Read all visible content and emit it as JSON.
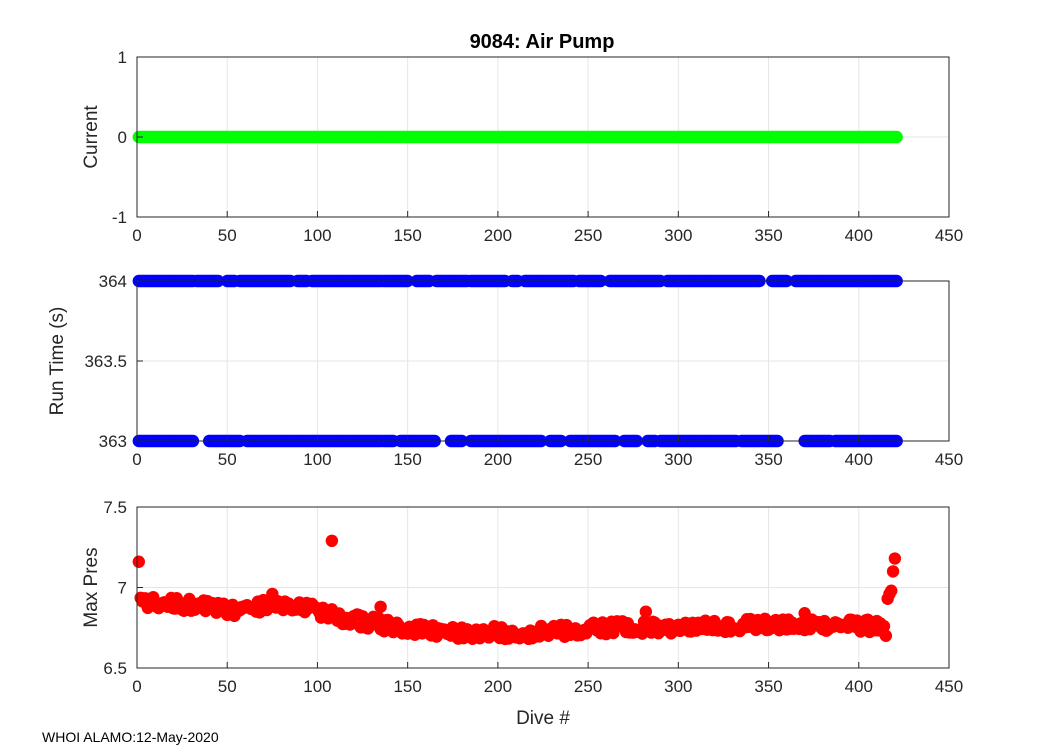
{
  "chart_data": [
    {
      "type": "scatter",
      "title": "9084: Air Pump",
      "xlabel": "",
      "ylabel": "Current",
      "xlim": [
        0,
        450
      ],
      "ylim": [
        -1,
        1
      ],
      "xticks": [
        "0",
        "50",
        "100",
        "150",
        "200",
        "250",
        "300",
        "350",
        "400",
        "450"
      ],
      "yticks": [
        "-1",
        "0",
        "1"
      ],
      "grid": true,
      "color": "#00ff00",
      "x_range": [
        1,
        421
      ],
      "y_constant": 0
    },
    {
      "type": "scatter",
      "title": "",
      "xlabel": "",
      "ylabel": "Run Time (s)",
      "xlim": [
        0,
        450
      ],
      "ylim": [
        363,
        364
      ],
      "xticks": [
        "0",
        "50",
        "100",
        "150",
        "200",
        "250",
        "300",
        "350",
        "400",
        "450"
      ],
      "yticks": [
        "363",
        "363.5",
        "364"
      ],
      "grid": true,
      "color": "#0000ff",
      "series": [
        {
          "y": 364,
          "x_segments": [
            [
              1,
              31
            ],
            [
              33,
              45
            ],
            [
              50,
              54
            ],
            [
              57,
              85
            ],
            [
              89,
              94
            ],
            [
              97,
              150
            ],
            [
              155,
              162
            ],
            [
              166,
              183
            ],
            [
              185,
              204
            ],
            [
              208,
              211
            ],
            [
              215,
              242
            ],
            [
              245,
              257
            ],
            [
              262,
              290
            ],
            [
              294,
              345
            ],
            [
              352,
              360
            ],
            [
              365,
              421
            ]
          ]
        },
        {
          "y": 363,
          "x_segments": [
            [
              1,
              31
            ],
            [
              40,
              57
            ],
            [
              61,
              130
            ],
            [
              131,
              142
            ],
            [
              146,
              165
            ],
            [
              174,
              180
            ],
            [
              185,
              224
            ],
            [
              229,
              235
            ],
            [
              240,
              265
            ],
            [
              270,
              277
            ],
            [
              283,
              287
            ],
            [
              290,
              332
            ],
            [
              335,
              355
            ],
            [
              370,
              384
            ],
            [
              387,
              421
            ]
          ]
        }
      ]
    },
    {
      "type": "scatter",
      "title": "",
      "xlabel": "Dive #",
      "ylabel": "Max Pres",
      "xlim": [
        0,
        450
      ],
      "ylim": [
        6.5,
        7.5
      ],
      "xticks": [
        "0",
        "50",
        "100",
        "150",
        "200",
        "250",
        "300",
        "350",
        "400",
        "450"
      ],
      "yticks": [
        "6.5",
        "7",
        "7.5"
      ],
      "grid": true,
      "color": "#ff0000",
      "trend": [
        [
          1,
          6.9
        ],
        [
          20,
          6.9
        ],
        [
          40,
          6.88
        ],
        [
          55,
          6.85
        ],
        [
          75,
          6.9
        ],
        [
          90,
          6.88
        ],
        [
          110,
          6.82
        ],
        [
          150,
          6.74
        ],
        [
          170,
          6.72
        ],
        [
          200,
          6.72
        ],
        [
          220,
          6.72
        ],
        [
          260,
          6.75
        ],
        [
          300,
          6.75
        ],
        [
          340,
          6.77
        ],
        [
          380,
          6.77
        ],
        [
          410,
          6.76
        ],
        [
          414,
          6.72
        ]
      ],
      "outliers": [
        [
          1,
          7.16
        ],
        [
          108,
          7.29
        ],
        [
          135,
          6.88
        ],
        [
          75,
          6.96
        ],
        [
          282,
          6.85
        ],
        [
          370,
          6.84
        ],
        [
          415,
          6.7
        ],
        [
          416,
          6.93
        ],
        [
          417,
          6.96
        ],
        [
          418,
          6.98
        ],
        [
          419,
          7.1
        ],
        [
          420,
          7.18
        ]
      ]
    }
  ],
  "footer": "WHOI ALAMO:12-May-2020"
}
